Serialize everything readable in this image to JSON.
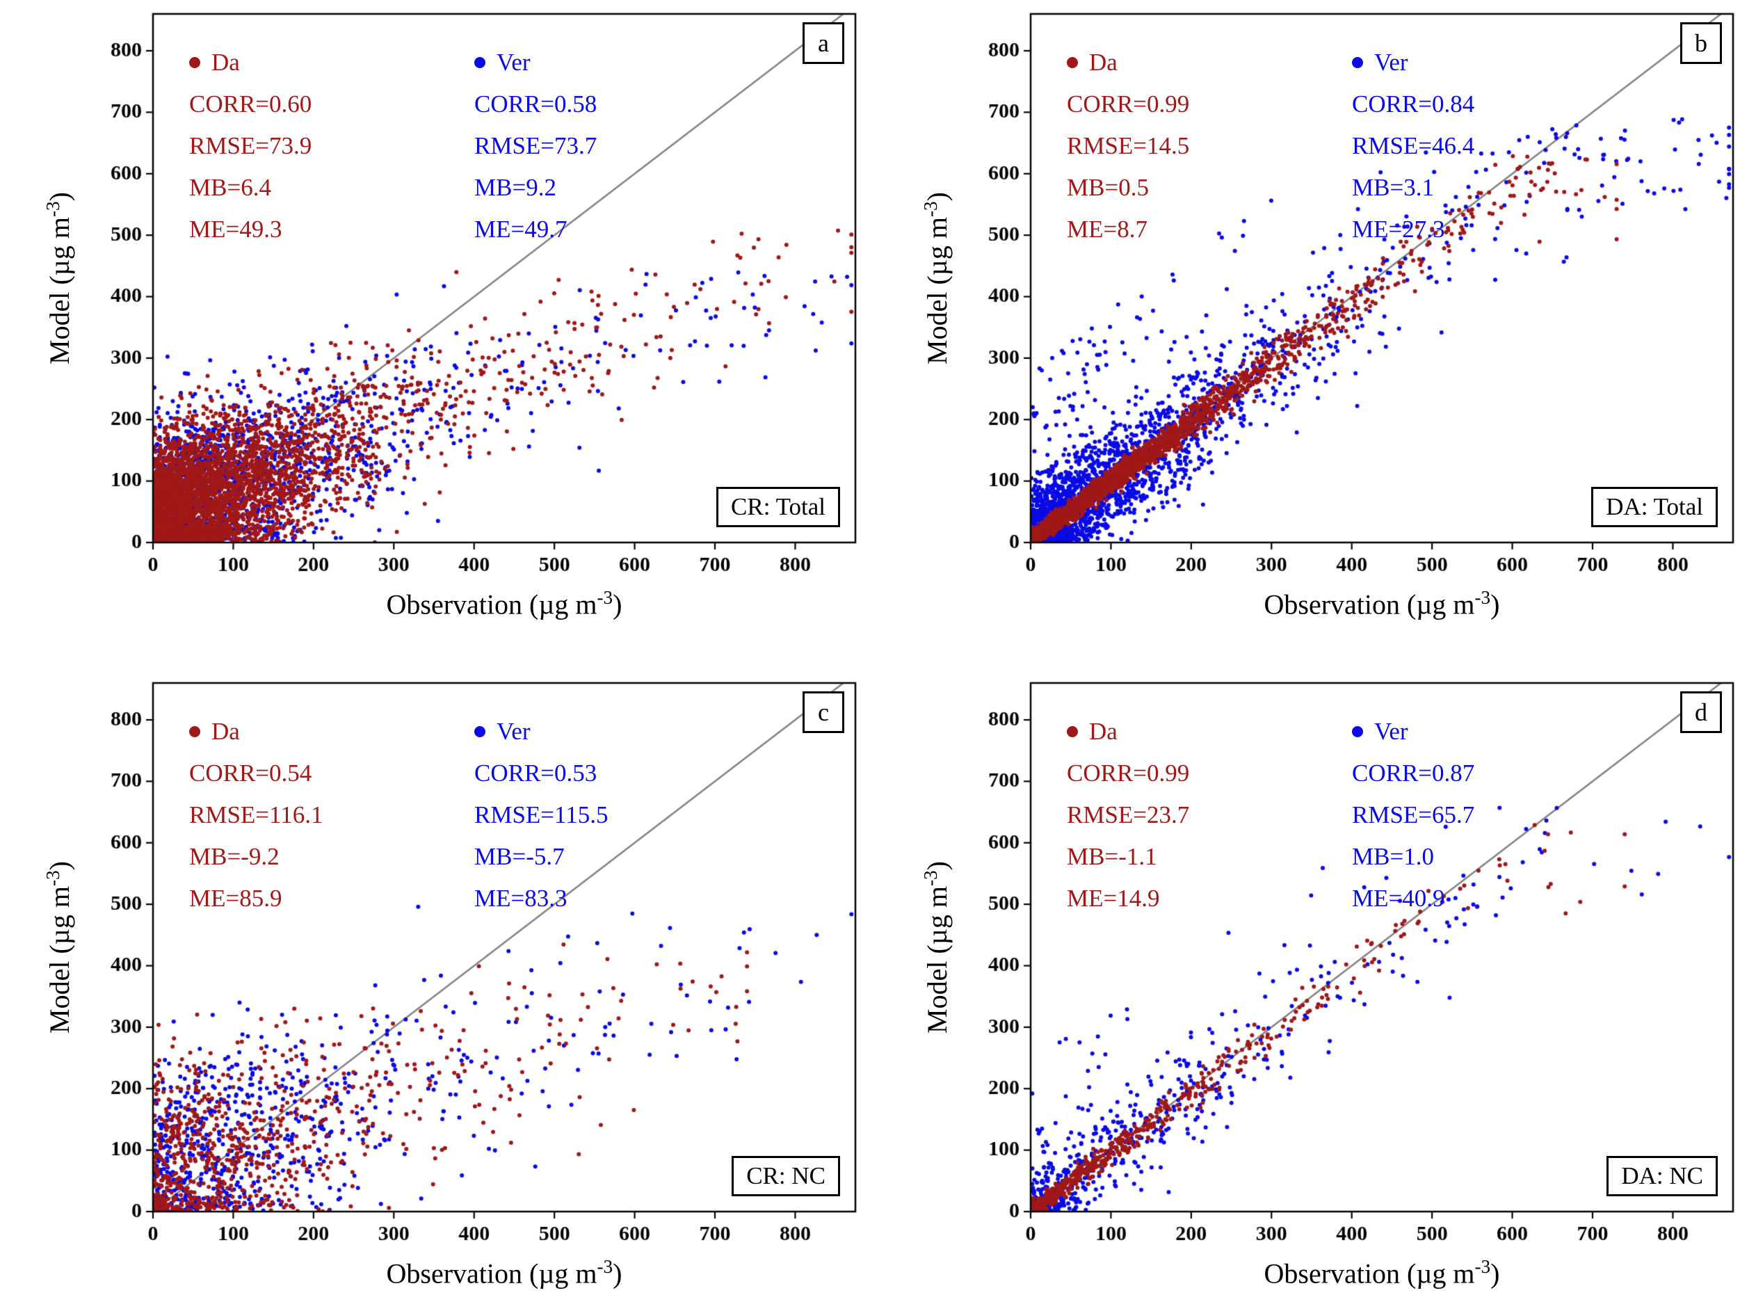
{
  "figure": {
    "x_label": {
      "main": "Observation (µg m",
      "sup": "-3",
      "close": ")"
    },
    "y_label": {
      "main": "Model (µg m",
      "sup": "-3",
      "close": ")"
    }
  },
  "chart_data": {
    "type": "scatter",
    "layout": "2x2 panel grid, 1:1 reference line in gray, square plot frames, serif fonts",
    "one_to_one_color": "#808080",
    "panels": [
      {
        "type": "scatter",
        "letter": "a",
        "tag": "CR: Total",
        "axes": {
          "xlim": [
            0,
            875
          ],
          "ylim": [
            0,
            860
          ],
          "xticks": [
            0,
            100,
            200,
            300,
            400,
            500,
            600,
            700,
            800
          ],
          "yticks": [
            0,
            100,
            200,
            300,
            400,
            500,
            600,
            700,
            800
          ]
        },
        "series": [
          {
            "name": "Da",
            "color": "#a01818",
            "stats": {
              "CORR": 0.6,
              "RMSE": 73.9,
              "MB": 6.4,
              "ME": 49.3
            },
            "lines": [
              "CORR=0.60",
              "RMSE=73.9",
              "MB=6.4",
              "ME=49.3"
            ],
            "sim": {
              "seed": 101,
              "n": 3800,
              "x": {
                "exp_mean": 70,
                "tail_frac": 0.2,
                "tail_mean": 150,
                "uni_frac": 0.03,
                "uni_max": 760,
                "min": 1,
                "max": 870
              },
              "y": {
                "slope": 0.52,
                "intercept": 35,
                "noise": 62,
                "noise_prop": 0,
                "max": 515
              }
            }
          },
          {
            "name": "Ver",
            "color": "#0a0ae6",
            "stats": {
              "CORR": 0.58,
              "RMSE": 73.7,
              "MB": 9.2,
              "ME": 49.7
            },
            "lines": [
              "CORR=0.58",
              "RMSE=73.7",
              "MB=9.2",
              "ME=49.7"
            ],
            "sim": {
              "seed": 102,
              "n": 1700,
              "x": {
                "exp_mean": 85,
                "tail_frac": 0.2,
                "tail_mean": 190,
                "uni_frac": 0.035,
                "uni_max": 870,
                "min": 1,
                "max": 870
              },
              "y": {
                "slope": 0.48,
                "intercept": 45,
                "noise": 72,
                "noise_prop": 0,
                "max": 455
              }
            }
          }
        ]
      },
      {
        "type": "scatter",
        "letter": "b",
        "tag": "DA: Total",
        "axes": {
          "xlim": [
            0,
            875
          ],
          "ylim": [
            0,
            860
          ],
          "xticks": [
            0,
            100,
            200,
            300,
            400,
            500,
            600,
            700,
            800
          ],
          "yticks": [
            0,
            100,
            200,
            300,
            400,
            500,
            600,
            700,
            800
          ]
        },
        "series": [
          {
            "name": "Da",
            "color": "#a01818",
            "stats": {
              "CORR": 0.99,
              "RMSE": 14.5,
              "MB": 0.5,
              "ME": 8.7
            },
            "lines": [
              "CORR=0.99",
              "RMSE=14.5",
              "MB=0.5",
              "ME=8.7"
            ],
            "sim": {
              "seed": 201,
              "n": 3200,
              "x": {
                "exp_mean": 85,
                "tail_frac": 0.25,
                "tail_mean": 160,
                "uni_frac": 0.035,
                "uni_max": 700,
                "min": 1,
                "max": 730
              },
              "y": {
                "slope": 0.97,
                "intercept": 3,
                "noise": 5,
                "noise_prop": 0.035,
                "max": 630
              }
            }
          },
          {
            "name": "Ver",
            "color": "#0a0ae6",
            "stats": {
              "CORR": 0.84,
              "RMSE": 46.4,
              "MB": 3.1,
              "ME": 27.3
            },
            "lines": [
              "CORR=0.84",
              "RMSE=46.4",
              "MB=3.1",
              "ME=27.3"
            ],
            "sim": {
              "seed": 202,
              "n": 2300,
              "x": {
                "exp_mean": 90,
                "tail_frac": 0.25,
                "tail_mean": 175,
                "uni_frac": 0.045,
                "uni_max": 870,
                "min": 1,
                "max": 870
              },
              "y": {
                "slope": 0.93,
                "intercept": 6,
                "noise": 38,
                "noise_prop": 0.05,
                "ov_frac": 0.06,
                "ov_max": 280,
                "max": 690
              }
            }
          }
        ]
      },
      {
        "type": "scatter",
        "letter": "c",
        "tag": "CR: NC",
        "axes": {
          "xlim": [
            0,
            875
          ],
          "ylim": [
            0,
            860
          ],
          "xticks": [
            0,
            100,
            200,
            300,
            400,
            500,
            600,
            700,
            800
          ],
          "yticks": [
            0,
            100,
            200,
            300,
            400,
            500,
            600,
            700,
            800
          ]
        },
        "series": [
          {
            "name": "Da",
            "color": "#a01818",
            "stats": {
              "CORR": 0.54,
              "RMSE": 116.1,
              "MB": -9.2,
              "ME": 85.9
            },
            "lines": [
              "CORR=0.54",
              "RMSE=116.1",
              "MB=-9.2",
              "ME=85.9"
            ],
            "sim": {
              "seed": 301,
              "n": 760,
              "x": {
                "exp_mean": 105,
                "tail_frac": 0.28,
                "tail_mean": 190,
                "uni_frac": 0.05,
                "uni_max": 730,
                "min": 2,
                "max": 740
              },
              "y": {
                "slope": 0.44,
                "intercept": 55,
                "noise": 82,
                "noise_prop": 0,
                "max": 500
              }
            }
          },
          {
            "name": "Ver",
            "color": "#0a0ae6",
            "stats": {
              "CORR": 0.53,
              "RMSE": 115.5,
              "MB": -5.7,
              "ME": 83.3
            },
            "lines": [
              "CORR=0.53",
              "RMSE=115.5",
              "MB=-5.7",
              "ME=83.3"
            ],
            "sim": {
              "seed": 302,
              "n": 700,
              "x": {
                "exp_mean": 115,
                "tail_frac": 0.28,
                "tail_mean": 200,
                "uni_frac": 0.05,
                "uni_max": 870,
                "min": 2,
                "max": 870
              },
              "y": {
                "slope": 0.44,
                "intercept": 60,
                "noise": 86,
                "noise_prop": 0,
                "max": 505
              }
            }
          }
        ]
      },
      {
        "type": "scatter",
        "letter": "d",
        "tag": "DA: NC",
        "axes": {
          "xlim": [
            0,
            875
          ],
          "ylim": [
            0,
            860
          ],
          "xticks": [
            0,
            100,
            200,
            300,
            400,
            500,
            600,
            700,
            800
          ],
          "yticks": [
            0,
            100,
            200,
            300,
            400,
            500,
            600,
            700,
            800
          ]
        },
        "series": [
          {
            "name": "Da",
            "color": "#a01818",
            "stats": {
              "CORR": 0.99,
              "RMSE": 23.7,
              "MB": -1.1,
              "ME": 14.9
            },
            "lines": [
              "CORR=0.99",
              "RMSE=23.7",
              "MB=-1.1",
              "ME=14.9"
            ],
            "sim": {
              "seed": 401,
              "n": 520,
              "x": {
                "exp_mean": 105,
                "tail_frac": 0.3,
                "tail_mean": 185,
                "uni_frac": 0.035,
                "uni_max": 720,
                "min": 2,
                "max": 740
              },
              "y": {
                "slope": 0.97,
                "intercept": 0,
                "noise": 7,
                "noise_prop": 0.035,
                "max": 635
              }
            }
          },
          {
            "name": "Ver",
            "color": "#0a0ae6",
            "stats": {
              "CORR": 0.87,
              "RMSE": 65.7,
              "MB": 1.0,
              "ME": 40.9
            },
            "lines": [
              "CORR=0.87",
              "RMSE=65.7",
              "MB=1.0",
              "ME=40.9"
            ],
            "sim": {
              "seed": 402,
              "n": 520,
              "x": {
                "exp_mean": 112,
                "tail_frac": 0.3,
                "tail_mean": 195,
                "uni_frac": 0.045,
                "uni_max": 870,
                "min": 2,
                "max": 870
              },
              "y": {
                "slope": 0.94,
                "intercept": 4,
                "noise": 42,
                "noise_prop": 0.035,
                "ov_frac": 0.06,
                "ov_max": 240,
                "max": 660
              }
            }
          }
        ]
      }
    ]
  }
}
